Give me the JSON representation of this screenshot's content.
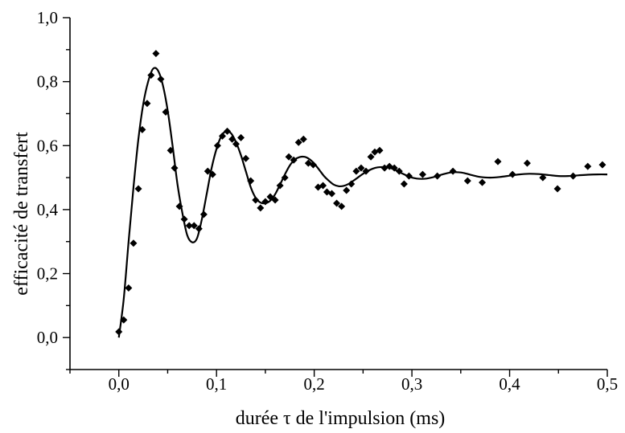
{
  "chart_data": {
    "type": "scatter",
    "title": "",
    "xlabel": "durée τ de l'impulsion (ms)",
    "ylabel": "efficacité de transfert",
    "xlim": [
      -0.05,
      0.5
    ],
    "ylim": [
      -0.1,
      1.0
    ],
    "grid": false,
    "x_tick_values": [
      0.0,
      0.1,
      0.2,
      0.3,
      0.4,
      0.5
    ],
    "x_tick_labels": [
      "0,0",
      "0,1",
      "0,2",
      "0,3",
      "0,4",
      "0,5"
    ],
    "y_tick_values": [
      0.0,
      0.2,
      0.4,
      0.6,
      0.8,
      1.0
    ],
    "y_tick_labels": [
      "0,0",
      "0,2",
      "0,4",
      "0,6",
      "0,8",
      "1,0"
    ],
    "series": [
      {
        "kind": "scatter",
        "marker": "diamond",
        "color": "#000000",
        "points": [
          [
            0.0,
            0.018
          ],
          [
            0.005,
            0.055
          ],
          [
            0.01,
            0.155
          ],
          [
            0.015,
            0.295
          ],
          [
            0.02,
            0.465
          ],
          [
            0.024,
            0.65
          ],
          [
            0.029,
            0.732
          ],
          [
            0.033,
            0.82
          ],
          [
            0.038,
            0.888
          ],
          [
            0.043,
            0.808
          ],
          [
            0.048,
            0.705
          ],
          [
            0.053,
            0.585
          ],
          [
            0.057,
            0.53
          ],
          [
            0.062,
            0.41
          ],
          [
            0.067,
            0.37
          ],
          [
            0.072,
            0.35
          ],
          [
            0.077,
            0.35
          ],
          [
            0.082,
            0.34
          ],
          [
            0.087,
            0.385
          ],
          [
            0.091,
            0.52
          ],
          [
            0.096,
            0.51
          ],
          [
            0.101,
            0.6
          ],
          [
            0.106,
            0.63
          ],
          [
            0.111,
            0.645
          ],
          [
            0.116,
            0.62
          ],
          [
            0.12,
            0.605
          ],
          [
            0.125,
            0.625
          ],
          [
            0.13,
            0.56
          ],
          [
            0.135,
            0.49
          ],
          [
            0.14,
            0.43
          ],
          [
            0.145,
            0.405
          ],
          [
            0.15,
            0.425
          ],
          [
            0.155,
            0.44
          ],
          [
            0.16,
            0.43
          ],
          [
            0.165,
            0.475
          ],
          [
            0.17,
            0.5
          ],
          [
            0.174,
            0.565
          ],
          [
            0.179,
            0.555
          ],
          [
            0.184,
            0.61
          ],
          [
            0.189,
            0.62
          ],
          [
            0.194,
            0.545
          ],
          [
            0.199,
            0.54
          ],
          [
            0.204,
            0.47
          ],
          [
            0.209,
            0.475
          ],
          [
            0.213,
            0.455
          ],
          [
            0.218,
            0.45
          ],
          [
            0.223,
            0.42
          ],
          [
            0.228,
            0.41
          ],
          [
            0.233,
            0.46
          ],
          [
            0.238,
            0.48
          ],
          [
            0.243,
            0.52
          ],
          [
            0.248,
            0.53
          ],
          [
            0.253,
            0.52
          ],
          [
            0.258,
            0.565
          ],
          [
            0.262,
            0.58
          ],
          [
            0.267,
            0.585
          ],
          [
            0.272,
            0.53
          ],
          [
            0.277,
            0.535
          ],
          [
            0.282,
            0.53
          ],
          [
            0.287,
            0.52
          ],
          [
            0.292,
            0.48
          ],
          [
            0.297,
            0.505
          ],
          [
            0.311,
            0.51
          ],
          [
            0.326,
            0.505
          ],
          [
            0.342,
            0.52
          ],
          [
            0.357,
            0.49
          ],
          [
            0.372,
            0.485
          ],
          [
            0.388,
            0.55
          ],
          [
            0.403,
            0.51
          ],
          [
            0.418,
            0.545
          ],
          [
            0.434,
            0.5
          ],
          [
            0.449,
            0.465
          ],
          [
            0.465,
            0.505
          ],
          [
            0.48,
            0.535
          ],
          [
            0.495,
            0.54
          ]
        ]
      },
      {
        "kind": "line",
        "color": "#000000",
        "points": [
          [
            0.0,
            0.0
          ],
          [
            0.005,
            0.12
          ],
          [
            0.01,
            0.3
          ],
          [
            0.015,
            0.47
          ],
          [
            0.02,
            0.62
          ],
          [
            0.025,
            0.73
          ],
          [
            0.03,
            0.8
          ],
          [
            0.035,
            0.84
          ],
          [
            0.04,
            0.835
          ],
          [
            0.045,
            0.79
          ],
          [
            0.05,
            0.71
          ],
          [
            0.055,
            0.6
          ],
          [
            0.06,
            0.48
          ],
          [
            0.065,
            0.39
          ],
          [
            0.07,
            0.32
          ],
          [
            0.075,
            0.298
          ],
          [
            0.08,
            0.31
          ],
          [
            0.085,
            0.37
          ],
          [
            0.09,
            0.45
          ],
          [
            0.095,
            0.53
          ],
          [
            0.1,
            0.59
          ],
          [
            0.105,
            0.63
          ],
          [
            0.11,
            0.645
          ],
          [
            0.115,
            0.638
          ],
          [
            0.12,
            0.61
          ],
          [
            0.125,
            0.57
          ],
          [
            0.13,
            0.52
          ],
          [
            0.135,
            0.47
          ],
          [
            0.14,
            0.437
          ],
          [
            0.145,
            0.422
          ],
          [
            0.15,
            0.42
          ],
          [
            0.155,
            0.428
          ],
          [
            0.16,
            0.448
          ],
          [
            0.165,
            0.478
          ],
          [
            0.17,
            0.51
          ],
          [
            0.175,
            0.538
          ],
          [
            0.18,
            0.556
          ],
          [
            0.185,
            0.564
          ],
          [
            0.19,
            0.565
          ],
          [
            0.195,
            0.558
          ],
          [
            0.2,
            0.544
          ],
          [
            0.205,
            0.525
          ],
          [
            0.21,
            0.505
          ],
          [
            0.215,
            0.49
          ],
          [
            0.22,
            0.478
          ],
          [
            0.225,
            0.473
          ],
          [
            0.23,
            0.474
          ],
          [
            0.235,
            0.48
          ],
          [
            0.24,
            0.49
          ],
          [
            0.245,
            0.501
          ],
          [
            0.25,
            0.512
          ],
          [
            0.255,
            0.521
          ],
          [
            0.26,
            0.528
          ],
          [
            0.265,
            0.532
          ],
          [
            0.27,
            0.533
          ],
          [
            0.275,
            0.532
          ],
          [
            0.28,
            0.528
          ],
          [
            0.285,
            0.521
          ],
          [
            0.29,
            0.513
          ],
          [
            0.295,
            0.506
          ],
          [
            0.3,
            0.5
          ],
          [
            0.305,
            0.497
          ],
          [
            0.31,
            0.496
          ],
          [
            0.315,
            0.497
          ],
          [
            0.32,
            0.5
          ],
          [
            0.325,
            0.504
          ],
          [
            0.33,
            0.509
          ],
          [
            0.335,
            0.513
          ],
          [
            0.34,
            0.516
          ],
          [
            0.345,
            0.517
          ],
          [
            0.35,
            0.516
          ],
          [
            0.355,
            0.513
          ],
          [
            0.36,
            0.509
          ],
          [
            0.365,
            0.505
          ],
          [
            0.37,
            0.502
          ],
          [
            0.38,
            0.5
          ],
          [
            0.39,
            0.502
          ],
          [
            0.4,
            0.506
          ],
          [
            0.41,
            0.51
          ],
          [
            0.42,
            0.512
          ],
          [
            0.43,
            0.511
          ],
          [
            0.44,
            0.508
          ],
          [
            0.45,
            0.505
          ],
          [
            0.46,
            0.505
          ],
          [
            0.47,
            0.507
          ],
          [
            0.48,
            0.509
          ],
          [
            0.49,
            0.51
          ],
          [
            0.5,
            0.51
          ]
        ]
      }
    ]
  }
}
